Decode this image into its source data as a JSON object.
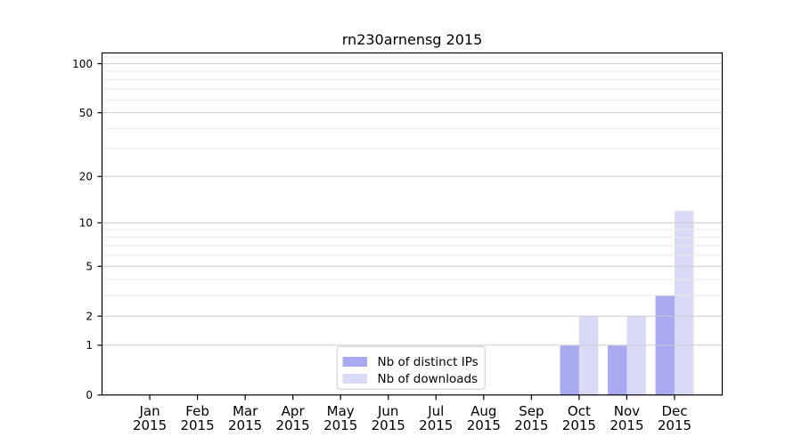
{
  "chart_data": {
    "type": "bar",
    "title": "rn230arnensg 2015",
    "months": [
      "Jan",
      "Feb",
      "Mar",
      "Apr",
      "May",
      "Jun",
      "Jul",
      "Aug",
      "Sep",
      "Oct",
      "Nov",
      "Dec"
    ],
    "year": "2015",
    "series": [
      {
        "name": "Nb of distinct IPs",
        "color": "#a9a9f1",
        "values": [
          0,
          0,
          0,
          0,
          0,
          0,
          0,
          0,
          0,
          1,
          1,
          3
        ]
      },
      {
        "name": "Nb of downloads",
        "color": "#d9d9f8",
        "values": [
          0,
          0,
          0,
          0,
          0,
          0,
          0,
          0,
          0,
          2,
          2,
          12
        ]
      }
    ],
    "yticks": [
      0,
      1,
      2,
      5,
      10,
      20,
      50,
      100
    ],
    "minor_yticks": [
      3,
      4,
      6,
      7,
      8,
      9,
      30,
      40,
      60,
      70,
      80,
      90,
      110
    ],
    "ylim": [
      0,
      116.3
    ],
    "yscale": "log1p",
    "xlabel": "",
    "ylabel": "",
    "grid": true,
    "legend_position": "inside-bottom-center",
    "colors": {
      "background": "#ffffff",
      "grid_major": "#cccccc",
      "grid_minor": "#e9e9e9",
      "spine": "#000000",
      "tick": "#000000",
      "text": "#000000",
      "legend_border": "#cccccc",
      "legend_background": "#ffffff"
    }
  }
}
